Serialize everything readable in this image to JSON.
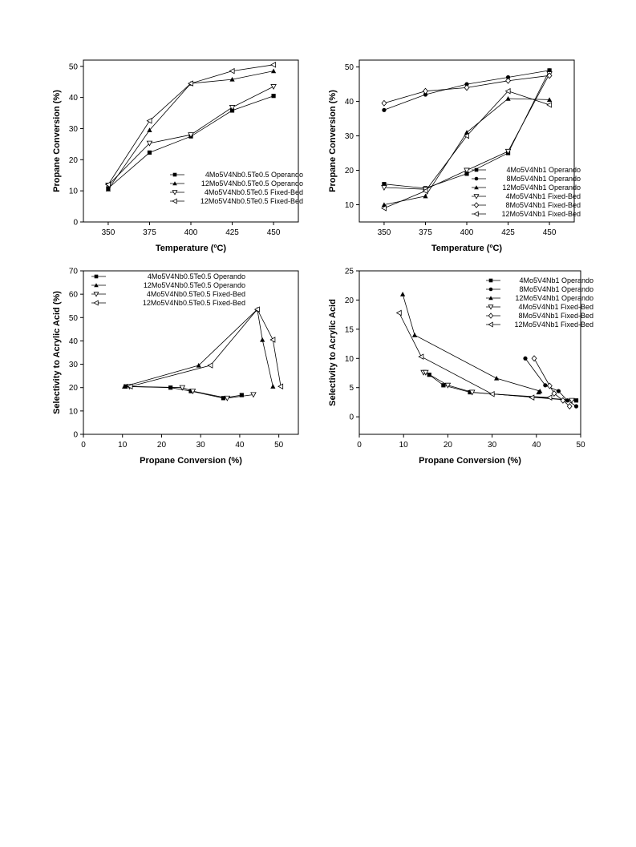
{
  "chart_data": [
    {
      "type": "line",
      "xlabel": "Temperature (ºC)",
      "ylabel": "Propane Conversion (%)",
      "xlim": [
        335,
        465
      ],
      "ylim": [
        0,
        52
      ],
      "xticks": [
        350,
        375,
        400,
        425,
        450
      ],
      "yticks": [
        0,
        10,
        20,
        30,
        40,
        50
      ],
      "legend_position": "bottom-right",
      "series": [
        {
          "name": "4Mo5V4Nb0.5Te0.5 Operando",
          "marker": "square",
          "x": [
            350,
            375,
            400,
            425,
            450
          ],
          "y": [
            10.8,
            22.3,
            27.5,
            35.8,
            40.5
          ]
        },
        {
          "name": "12Mo5V4Nb0.5Te0.5 Operando",
          "marker": "triangle-up",
          "x": [
            350,
            375,
            400,
            425,
            450
          ],
          "y": [
            10.5,
            29.5,
            44.5,
            45.8,
            48.5
          ]
        },
        {
          "name": "4Mo5V4Nb0.5Te0.5 Fixed-Bed",
          "marker": "triangle-down-open",
          "x": [
            350,
            375,
            400,
            425,
            450
          ],
          "y": [
            11.8,
            25.3,
            28.0,
            36.8,
            43.5
          ]
        },
        {
          "name": "12Mo5V4Nb0.5Te0.5 Fixed-Bed",
          "marker": "triangle-left-open",
          "x": [
            350,
            375,
            400,
            425,
            450
          ],
          "y": [
            12.0,
            32.5,
            44.5,
            48.5,
            50.5
          ]
        }
      ]
    },
    {
      "type": "line",
      "xlabel": "Temperature (ºC)",
      "ylabel": "Propane Conversion (%)",
      "xlim": [
        335,
        465
      ],
      "ylim": [
        5,
        52
      ],
      "xticks": [
        350,
        375,
        400,
        425,
        450
      ],
      "yticks": [
        10,
        20,
        30,
        40,
        50
      ],
      "legend_position": "bottom-right",
      "series": [
        {
          "name": "4Mo5V4Nb1 Operando",
          "marker": "square",
          "x": [
            350,
            375,
            400,
            425,
            450
          ],
          "y": [
            16.0,
            14.8,
            19.0,
            25.0,
            49.0
          ]
        },
        {
          "name": "8Mo5V4Nb1 Operando",
          "marker": "circle",
          "x": [
            350,
            375,
            400,
            425,
            450
          ],
          "y": [
            37.5,
            42.0,
            45.0,
            47.0,
            49.0
          ]
        },
        {
          "name": "12Mo5V4Nb1 Operando",
          "marker": "triangle-up",
          "x": [
            350,
            375,
            400,
            425,
            450
          ],
          "y": [
            10.0,
            12.5,
            31.0,
            40.8,
            40.5
          ]
        },
        {
          "name": "4Mo5V4Nb1 Fixed-Bed",
          "marker": "triangle-down-open",
          "x": [
            350,
            375,
            400,
            425,
            450
          ],
          "y": [
            15.0,
            14.5,
            20.0,
            25.5,
            48.0
          ]
        },
        {
          "name": "8Mo5V4Nb1 Fixed-Bed",
          "marker": "diamond-open",
          "x": [
            350,
            375,
            400,
            425,
            450
          ],
          "y": [
            39.5,
            43.0,
            44.0,
            46.0,
            47.5
          ]
        },
        {
          "name": "12Mo5V4Nb1 Fixed-Bed",
          "marker": "triangle-left-open",
          "x": [
            350,
            375,
            400,
            425,
            450
          ],
          "y": [
            9.0,
            14.0,
            30.0,
            43.0,
            39.0
          ]
        }
      ]
    },
    {
      "type": "line",
      "xlabel": "Propane Conversion (%)",
      "ylabel": "Selectivity to Acrylic Acid (%)",
      "xlim": [
        0,
        55
      ],
      "ylim": [
        0,
        70
      ],
      "xticks": [
        0,
        10,
        20,
        30,
        40,
        50
      ],
      "yticks": [
        0,
        10,
        20,
        30,
        40,
        50,
        60,
        70
      ],
      "legend_position": "top-left",
      "series": [
        {
          "name": "4Mo5V4Nb0.5Te0.5 Operando",
          "marker": "square",
          "x": [
            10.8,
            22.3,
            27.5,
            35.8,
            40.5
          ],
          "y": [
            20.5,
            20.0,
            18.5,
            15.5,
            16.8
          ]
        },
        {
          "name": "12Mo5V4Nb0.5Te0.5 Operando",
          "marker": "triangle-up",
          "x": [
            10.5,
            29.5,
            44.5,
            45.8,
            48.5
          ],
          "y": [
            20.5,
            29.5,
            53.5,
            40.5,
            20.5
          ]
        },
        {
          "name": "4Mo5V4Nb0.5Te0.5 Fixed-Bed",
          "marker": "triangle-down-open",
          "x": [
            11.8,
            25.3,
            28.0,
            36.8,
            43.5
          ],
          "y": [
            20.5,
            20.0,
            18.5,
            15.5,
            17.0
          ]
        },
        {
          "name": "12Mo5V4Nb0.5Te0.5 Fixed-Bed",
          "marker": "triangle-left-open",
          "x": [
            12.0,
            32.5,
            44.5,
            48.5,
            50.5
          ],
          "y": [
            20.5,
            29.5,
            53.5,
            40.5,
            20.5
          ]
        }
      ]
    },
    {
      "type": "line",
      "xlabel": "Propane Conversion (%)",
      "ylabel": "Selectivity to Acrylic Acid",
      "xlim": [
        0,
        50
      ],
      "ylim": [
        -3,
        25
      ],
      "xticks": [
        0,
        10,
        20,
        30,
        40,
        50
      ],
      "yticks": [
        0,
        5,
        10,
        15,
        20,
        25
      ],
      "legend_position": "top-right",
      "series": [
        {
          "name": "4Mo5V4Nb1 Operando",
          "marker": "square",
          "x": [
            15.8,
            19.0,
            25.0,
            49.0
          ],
          "y": [
            7.2,
            5.4,
            4.2,
            2.8
          ]
        },
        {
          "name": "8Mo5V4Nb1 Operando",
          "marker": "circle",
          "x": [
            37.5,
            42.0,
            45.0,
            47.0,
            49.0
          ],
          "y": [
            10.0,
            5.4,
            4.4,
            2.8,
            1.8
          ]
        },
        {
          "name": "12Mo5V4Nb1 Operando",
          "marker": "triangle-up",
          "x": [
            9.8,
            12.5,
            31.0,
            40.8,
            40.5
          ],
          "y": [
            21.0,
            14.0,
            6.6,
            4.4,
            4.2
          ]
        },
        {
          "name": "4Mo5V4Nb1 Fixed-Bed",
          "marker": "triangle-down-open",
          "x": [
            14.5,
            15.0,
            20.0,
            25.5,
            48.0
          ],
          "y": [
            7.6,
            7.6,
            5.4,
            4.2,
            2.8
          ]
        },
        {
          "name": "8Mo5V4Nb1 Fixed-Bed",
          "marker": "diamond-open",
          "x": [
            39.5,
            43.0,
            44.0,
            46.0,
            47.5
          ],
          "y": [
            10.0,
            5.3,
            4.0,
            2.8,
            1.8
          ]
        },
        {
          "name": "12Mo5V4Nb1 Fixed-Bed",
          "marker": "triangle-left-open",
          "x": [
            9.0,
            14.0,
            30.0,
            43.0,
            39.0
          ],
          "y": [
            17.8,
            10.3,
            3.9,
            3.3,
            3.3
          ]
        }
      ]
    }
  ]
}
